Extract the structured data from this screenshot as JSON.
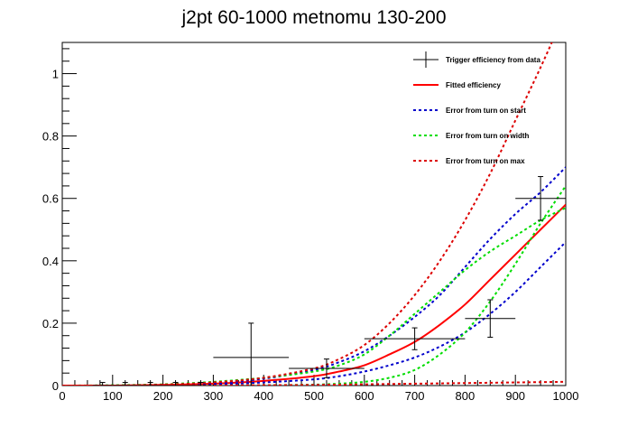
{
  "chart_data": {
    "type": "line",
    "title": "j2pt 60-1000 metnomu 130-200",
    "xlabel": "",
    "ylabel": "",
    "xlim": [
      0,
      1000
    ],
    "ylim": [
      0,
      1.1
    ],
    "x_ticks": [
      0,
      100,
      200,
      300,
      400,
      500,
      600,
      700,
      800,
      900,
      1000
    ],
    "y_ticks": [
      0,
      0.2,
      0.4,
      0.6,
      0.8,
      1
    ],
    "x_tick_labels": [
      "0",
      "100",
      "200",
      "300",
      "400",
      "500",
      "600",
      "700",
      "800",
      "900",
      "1000"
    ],
    "y_tick_labels": [
      "0",
      "0.2",
      "0.4",
      "0.6",
      "0.8",
      "1"
    ],
    "grid": false,
    "legend_position": "top-right",
    "data_points": {
      "name": "Trigger efficiency from data",
      "color": "#000000",
      "points": [
        {
          "x": 80,
          "y": 0,
          "xerr": 20,
          "yerr": 0.01
        },
        {
          "x": 125,
          "y": 0,
          "xerr": 25,
          "yerr": 0.01
        },
        {
          "x": 175,
          "y": 0,
          "xerr": 25,
          "yerr": 0.01
        },
        {
          "x": 225,
          "y": 0,
          "xerr": 25,
          "yerr": 0.01
        },
        {
          "x": 275,
          "y": 0,
          "xerr": 25,
          "yerr": 0.01
        },
        {
          "x": 375,
          "y": 0.09,
          "xerr": 75,
          "yerr": 0.11
        },
        {
          "x": 525,
          "y": 0.055,
          "xerr": 75,
          "yerr": 0.03
        },
        {
          "x": 700,
          "y": 0.15,
          "xerr": 100,
          "yerr": 0.035
        },
        {
          "x": 850,
          "y": 0.215,
          "xerr": 50,
          "yerr": 0.06
        },
        {
          "x": 950,
          "y": 0.6,
          "xerr": 50,
          "yerr": 0.07
        }
      ]
    },
    "series": [
      {
        "name": "Fitted efficiency",
        "color": "#ff0000",
        "style": "solid",
        "x": [
          0,
          100,
          200,
          300,
          400,
          500,
          550,
          600,
          650,
          700,
          750,
          800,
          850,
          900,
          950,
          1000
        ],
        "y": [
          0,
          0,
          0.002,
          0.006,
          0.015,
          0.03,
          0.045,
          0.065,
          0.1,
          0.14,
          0.195,
          0.26,
          0.34,
          0.42,
          0.5,
          0.58
        ]
      },
      {
        "name": "Error from turn on start",
        "color": "#0000cc",
        "style": "dotted",
        "x": [
          0,
          100,
          200,
          300,
          400,
          500,
          550,
          600,
          650,
          700,
          750,
          800,
          850,
          900,
          950,
          1000
        ],
        "y": [
          0,
          0,
          0.002,
          0.008,
          0.022,
          0.05,
          0.075,
          0.11,
          0.16,
          0.22,
          0.29,
          0.38,
          0.47,
          0.55,
          0.62,
          0.7
        ]
      },
      {
        "name": "Error from turn on start",
        "color": "#0000cc",
        "style": "dotted",
        "x": [
          0,
          100,
          200,
          300,
          400,
          500,
          550,
          600,
          650,
          700,
          750,
          800,
          850,
          900,
          950,
          1000
        ],
        "y": [
          0,
          0,
          0.001,
          0.004,
          0.01,
          0.02,
          0.03,
          0.045,
          0.065,
          0.09,
          0.125,
          0.17,
          0.23,
          0.3,
          0.38,
          0.46
        ]
      },
      {
        "name": "Error from turn on width",
        "color": "#00dd00",
        "style": "dotted",
        "x": [
          0,
          100,
          200,
          300,
          400,
          500,
          550,
          600,
          650,
          700,
          750,
          800,
          850,
          900,
          950,
          1000
        ],
        "y": [
          0,
          0.001,
          0.004,
          0.012,
          0.025,
          0.045,
          0.065,
          0.1,
          0.16,
          0.23,
          0.3,
          0.37,
          0.43,
          0.48,
          0.53,
          0.57
        ]
      },
      {
        "name": "Error from turn on width",
        "color": "#00dd00",
        "style": "dotted",
        "x": [
          0,
          100,
          200,
          300,
          400,
          500,
          550,
          600,
          650,
          700,
          750,
          800,
          850,
          900,
          950,
          1000
        ],
        "y": [
          0,
          0,
          0,
          0,
          0.001,
          0.003,
          0.006,
          0.012,
          0.025,
          0.05,
          0.1,
          0.17,
          0.27,
          0.39,
          0.52,
          0.64
        ]
      },
      {
        "name": "Error from turn on max",
        "color": "#dd0000",
        "style": "dotted",
        "x": [
          0,
          100,
          200,
          300,
          400,
          500,
          550,
          600,
          650,
          700,
          750,
          800,
          850,
          900,
          950,
          1000
        ],
        "y": [
          0,
          0,
          0.003,
          0.01,
          0.025,
          0.055,
          0.085,
          0.13,
          0.2,
          0.29,
          0.4,
          0.53,
          0.68,
          0.85,
          1.02,
          1.2
        ]
      },
      {
        "name": "Error from turn on max",
        "color": "#dd0000",
        "style": "dotted",
        "x": [
          0,
          100,
          200,
          300,
          400,
          500,
          600,
          700,
          800,
          900,
          1000
        ],
        "y": [
          0,
          0,
          0,
          0,
          0.001,
          0.002,
          0.004,
          0.006,
          0.008,
          0.01,
          0.012
        ]
      }
    ],
    "legend": [
      {
        "label": "Trigger efficiency from data",
        "kind": "marker",
        "color": "#000000"
      },
      {
        "label": "Fitted efficiency",
        "kind": "solid",
        "color": "#ff0000"
      },
      {
        "label": "Error from turn on start",
        "kind": "dotted",
        "color": "#0000cc"
      },
      {
        "label": "Error from turn on width",
        "kind": "dotted",
        "color": "#00dd00"
      },
      {
        "label": "Error from turn on max",
        "kind": "dotted",
        "color": "#dd0000"
      }
    ]
  }
}
